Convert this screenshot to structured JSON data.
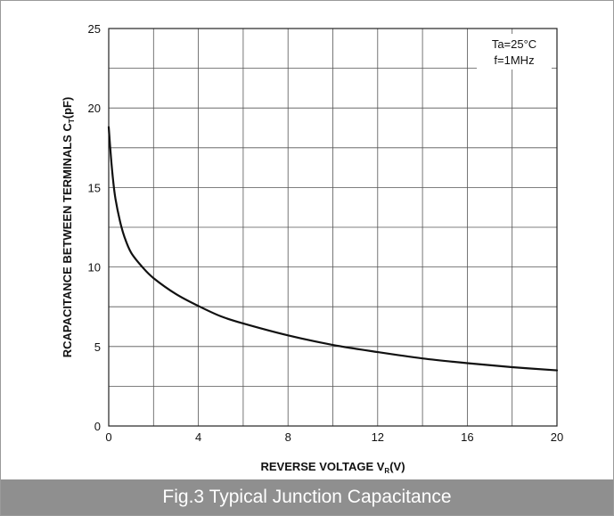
{
  "caption": "Fig.3 Typical Junction Capacitance",
  "chart_data": {
    "type": "line",
    "xlabel_main": "REVERSE VOLTAGE  V",
    "xlabel_sub": "R",
    "xlabel_tail": "(V)",
    "ylabel_main": "RCAPACITANCE BETWEEN TERMINALS  C",
    "ylabel_sub": "T",
    "ylabel_tail": "(pF)",
    "xlim": [
      0,
      20
    ],
    "ylim": [
      0,
      25
    ],
    "x_ticks": [
      0,
      4,
      8,
      12,
      16,
      20
    ],
    "y_ticks": [
      0,
      5,
      10,
      15,
      20,
      25
    ],
    "x_grid_step": 2,
    "y_grid_step": 2.5,
    "grid": true,
    "conditions": [
      "Ta=25°C",
      "f=1MHz"
    ],
    "series": [
      {
        "x": [
          0,
          0.1,
          0.2,
          0.3,
          0.5,
          0.7,
          1.0,
          1.5,
          2.0,
          3.0,
          4.0,
          5.0,
          6.0,
          8.0,
          10.0,
          12.0,
          14.0,
          16.0,
          18.0,
          20.0
        ],
        "y": [
          18.8,
          16.9,
          15.4,
          14.3,
          12.9,
          11.9,
          10.9,
          10.0,
          9.3,
          8.3,
          7.55,
          6.9,
          6.45,
          5.7,
          5.1,
          4.65,
          4.25,
          3.95,
          3.7,
          3.5
        ]
      }
    ]
  }
}
